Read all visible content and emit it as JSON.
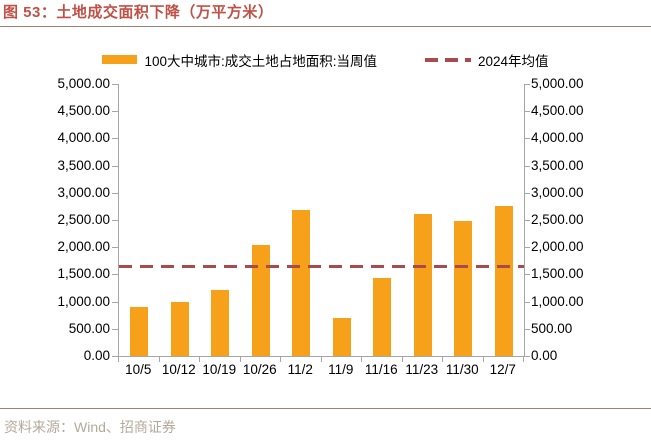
{
  "figure": {
    "title": "图 53：土地成交面积下降（万平方米）"
  },
  "legend": {
    "bar_series_label": "100大中城市:成交土地占地面积:当周值",
    "mean_line_label": "2024年均值"
  },
  "footer": {
    "source_label": "资料来源：Wind、招商证券"
  },
  "colors": {
    "title_text": "#bf5147",
    "bar_fill": "#f7a11a",
    "mean_line": "#a94a4c",
    "axis_line": "#a6a6a6",
    "footer_text": "#b5a99b"
  },
  "chart_data": {
    "type": "bar",
    "title": "",
    "xlabel": "",
    "ylabel": "",
    "categories": [
      "10/5",
      "10/12",
      "10/19",
      "10/26",
      "11/2",
      "11/9",
      "11/16",
      "11/23",
      "11/30",
      "12/7"
    ],
    "series": [
      {
        "name": "100大中城市:成交土地占地面积:当周值",
        "type": "bar",
        "color": "#f7a11a",
        "values": [
          910,
          1000,
          1210,
          2040,
          2680,
          690,
          1425,
          2610,
          2490,
          2760
        ]
      },
      {
        "name": "2024年均值",
        "type": "dashed-horizontal-line",
        "color": "#a94a4c",
        "value": 1650
      }
    ],
    "ylim": [
      0,
      5000
    ],
    "y_step": 500,
    "y_tick_format": "thousands-two-decimals",
    "dual_y_axis": true,
    "grid": false,
    "legend_position": "top"
  }
}
